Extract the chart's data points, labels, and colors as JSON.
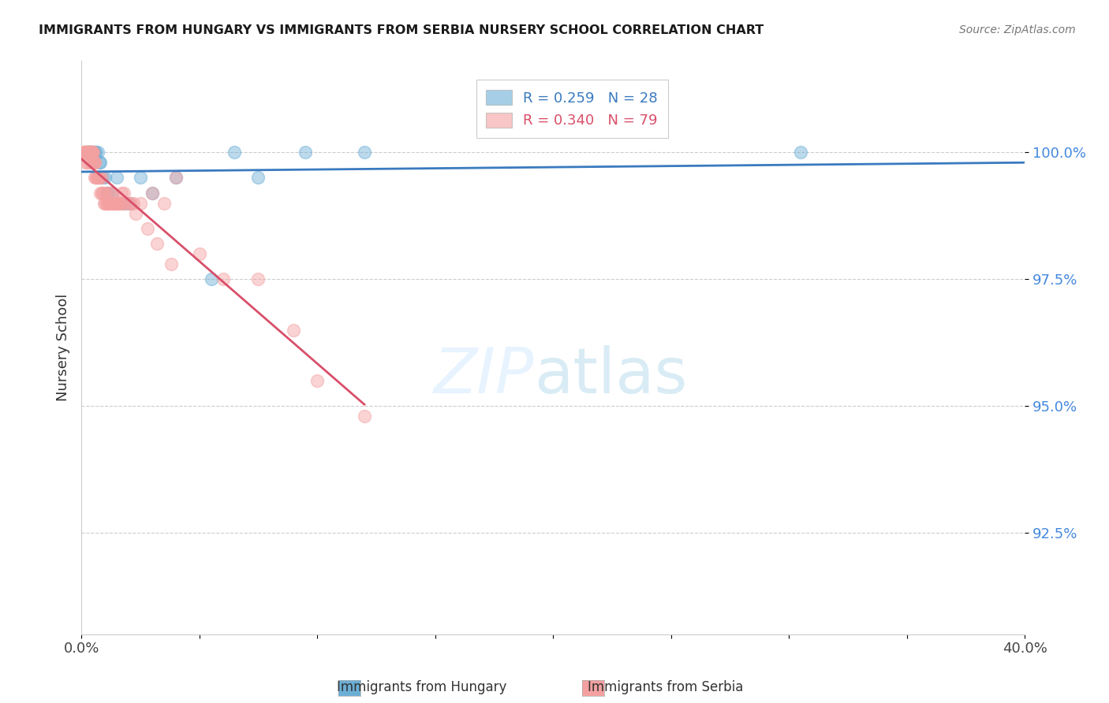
{
  "title": "IMMIGRANTS FROM HUNGARY VS IMMIGRANTS FROM SERBIA NURSERY SCHOOL CORRELATION CHART",
  "source": "Source: ZipAtlas.com",
  "ylabel": "Nursery School",
  "ytick_vals": [
    92.5,
    95.0,
    97.5,
    100.0
  ],
  "legend_hungary": "R = 0.259   N = 28",
  "legend_serbia": "R = 0.340   N = 79",
  "hungary_color": "#6baed6",
  "serbia_color": "#f4a0a0",
  "trendline_hungary_color": "#3a7abf",
  "trendline_serbia_color": "#d94f6a",
  "xlim": [
    0.0,
    40.0
  ],
  "ylim": [
    90.5,
    101.8
  ],
  "hungary_x": [
    0.18,
    0.25,
    0.3,
    0.35,
    0.4,
    0.45,
    0.5,
    0.55,
    0.6,
    0.7,
    0.75,
    0.8,
    0.9,
    1.0,
    1.1,
    1.3,
    1.5,
    1.8,
    2.0,
    2.5,
    3.0,
    4.0,
    5.5,
    6.5,
    7.5,
    9.5,
    12.0,
    30.5
  ],
  "hungary_y": [
    100.0,
    100.0,
    100.0,
    100.0,
    100.0,
    100.0,
    100.0,
    100.0,
    100.0,
    100.0,
    99.8,
    99.8,
    99.5,
    99.5,
    99.2,
    99.2,
    99.5,
    99.0,
    99.0,
    99.5,
    99.2,
    99.5,
    97.5,
    100.0,
    99.5,
    100.0,
    100.0,
    100.0
  ],
  "serbia_x": [
    0.1,
    0.12,
    0.14,
    0.16,
    0.18,
    0.2,
    0.22,
    0.24,
    0.26,
    0.28,
    0.3,
    0.32,
    0.34,
    0.36,
    0.38,
    0.4,
    0.42,
    0.44,
    0.46,
    0.48,
    0.5,
    0.52,
    0.54,
    0.56,
    0.58,
    0.6,
    0.65,
    0.7,
    0.75,
    0.8,
    0.85,
    0.9,
    0.95,
    1.0,
    1.05,
    1.1,
    1.15,
    1.2,
    1.3,
    1.4,
    1.5,
    1.6,
    1.7,
    1.8,
    2.0,
    2.2,
    2.5,
    3.0,
    3.5,
    4.0,
    0.15,
    0.25,
    0.35,
    0.45,
    0.55,
    0.65,
    0.75,
    0.85,
    0.95,
    1.05,
    1.15,
    1.25,
    1.35,
    1.45,
    1.55,
    1.65,
    1.75,
    1.85,
    2.1,
    2.3,
    2.8,
    3.2,
    3.8,
    5.0,
    6.0,
    7.5,
    9.0,
    10.0,
    12.0
  ],
  "serbia_y": [
    100.0,
    100.0,
    100.0,
    100.0,
    100.0,
    100.0,
    100.0,
    100.0,
    100.0,
    100.0,
    100.0,
    100.0,
    100.0,
    100.0,
    100.0,
    100.0,
    100.0,
    100.0,
    100.0,
    100.0,
    100.0,
    99.8,
    99.8,
    99.8,
    99.5,
    99.5,
    99.5,
    99.5,
    99.5,
    99.2,
    99.2,
    99.2,
    99.0,
    99.0,
    99.0,
    99.0,
    99.0,
    99.0,
    99.0,
    99.0,
    99.0,
    99.0,
    99.2,
    99.2,
    99.0,
    99.0,
    99.0,
    99.2,
    99.0,
    99.5,
    99.8,
    99.8,
    99.8,
    99.8,
    99.8,
    99.5,
    99.5,
    99.5,
    99.2,
    99.2,
    99.2,
    99.2,
    99.0,
    99.0,
    99.0,
    99.0,
    99.0,
    99.0,
    99.0,
    98.8,
    98.5,
    98.2,
    97.8,
    98.0,
    97.5,
    97.5,
    96.5,
    95.5,
    94.8
  ]
}
